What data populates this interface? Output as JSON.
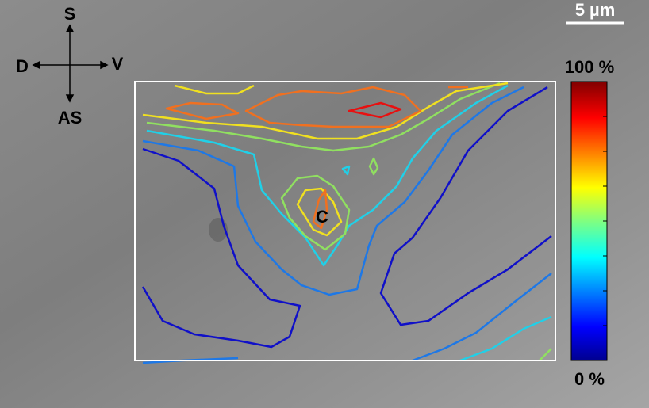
{
  "orientation": {
    "up": "S",
    "left": "D",
    "right": "V",
    "down": "AS"
  },
  "scale_bar": "5 µm",
  "marker": "C",
  "colorbar": {
    "max_label": "100 %",
    "min_label": "0 %"
  }
}
